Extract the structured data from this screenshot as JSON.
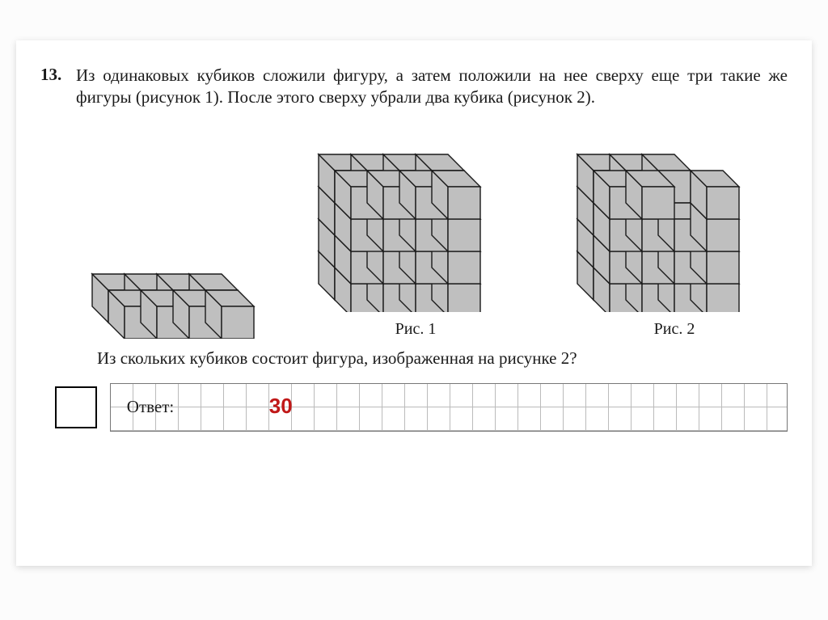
{
  "problem": {
    "number": "13.",
    "text": "Из одинаковых кубиков сложили фигуру, а затем положили на нее сверху еще три такие же фигуры (рисунок 1). После этого сверху убрали два кубика (рисунок 2).",
    "question": "Из скольких кубиков состоит фигура, изображенная на рисунке 2?",
    "fig1_label": "Рис. 1",
    "fig2_label": "Рис. 2",
    "answer_label": "Ответ:",
    "answer_value": "30"
  },
  "cubes": {
    "face_color": "#bfbfbf",
    "stroke": "#1a1a1a",
    "fig_a": {
      "cols": 4,
      "rows": 2,
      "layers": 1,
      "removed": []
    },
    "fig_b": {
      "cols": 4,
      "rows": 2,
      "layers": 4,
      "removed": []
    },
    "fig_c": {
      "cols": 4,
      "rows": 2,
      "layers": 4,
      "removed": [
        [
          2,
          0,
          3
        ],
        [
          3,
          1,
          3
        ]
      ]
    }
  }
}
